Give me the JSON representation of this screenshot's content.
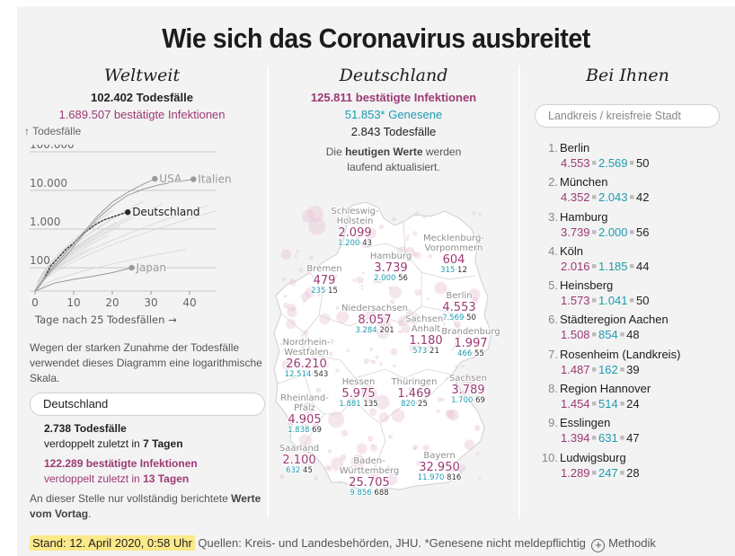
{
  "title": "Wie sich das Coronavirus ausbreitet",
  "weltweit": {
    "heading": "Weltweit",
    "deaths": "102.402 Todesfälle",
    "infections": "1.689.507 bestätigte Infektionen",
    "y_axis_caption": "↑ Todesfälle",
    "explanation": "Wegen der starken Zunahme der Todesfälle verwendet dieses Diagramm eine logarithmische Skala.",
    "country_select": "Deutschland",
    "doubling": {
      "deaths_value": "2.738 Todesfälle",
      "deaths_prefix": "verdoppelt zuletzt in ",
      "deaths_days": "7 Tagen",
      "infections_value": "122.289 bestätigte Infektionen",
      "infections_prefix": "verdoppelt zuletzt in ",
      "infections_days": "13 Tagen"
    },
    "note_prefix": "An dieser Stelle nur vollständig berichtete ",
    "note_bold": "Werte vom Vortag",
    "note_suffix": "."
  },
  "chart_data": {
    "type": "line",
    "title": "",
    "xlabel": "Tage nach 25 Todesfällen →",
    "ylabel": "↑ Todesfälle",
    "yscale": "log",
    "xlim": [
      0,
      47
    ],
    "ylim": [
      25,
      100000
    ],
    "x_ticks": [
      0,
      10,
      20,
      30,
      40
    ],
    "x_tick_labels": [
      "0",
      "10",
      "20",
      "30",
      "40"
    ],
    "y_ticks": [
      100,
      1000,
      10000,
      100000
    ],
    "y_tick_labels": [
      "100",
      "1.000",
      "10.000",
      "100.000"
    ],
    "grid": true,
    "series": [
      {
        "name": "Deutschland",
        "highlight": true,
        "x": [
          0,
          2,
          4,
          6,
          8,
          10,
          12,
          14,
          16,
          18,
          20,
          22,
          24
        ],
        "y": [
          25,
          45,
          110,
          180,
          300,
          430,
          700,
          1000,
          1400,
          1750,
          2050,
          2400,
          2738
        ]
      },
      {
        "name": "USA",
        "highlight": false,
        "labeled": true,
        "x": [
          0,
          4,
          8,
          12,
          16,
          20,
          24,
          28,
          31
        ],
        "y": [
          25,
          90,
          250,
          700,
          2100,
          5000,
          9000,
          14500,
          20000
        ]
      },
      {
        "name": "Italien",
        "highlight": false,
        "labeled": true,
        "x": [
          0,
          4,
          8,
          12,
          16,
          20,
          24,
          28,
          32,
          36,
          41
        ],
        "y": [
          25,
          80,
          200,
          630,
          1800,
          4000,
          7500,
          10800,
          13900,
          16500,
          19500
        ]
      },
      {
        "name": "Japan",
        "highlight": false,
        "labeled": true,
        "x": [
          0,
          5,
          10,
          15,
          20,
          25
        ],
        "y": [
          25,
          40,
          50,
          60,
          75,
          100
        ]
      }
    ]
  },
  "deutschland": {
    "heading": "Deutschland",
    "infections": "125.811 bestätigte Infektionen",
    "recovered": "51.853* Genesene",
    "deaths": "2.843 Todesfälle",
    "update_prefix": "Die ",
    "update_bold": "heutigen Werte",
    "update_suffix": " werden laufend aktualisiert.",
    "states": [
      {
        "name": "Schleswig-",
        "name2": "Holstein",
        "infections": "2.099",
        "recovered": "1.200",
        "deaths": "43"
      },
      {
        "name": "Mecklenburg-",
        "name2": "Vorpommern",
        "infections": "604",
        "recovered": "315",
        "deaths": "12"
      },
      {
        "name": "Hamburg",
        "name2": "",
        "infections": "3.739",
        "recovered": "2.000",
        "deaths": "56"
      },
      {
        "name": "Bremen",
        "name2": "",
        "infections": "479",
        "recovered": "235",
        "deaths": "15"
      },
      {
        "name": "Berlin",
        "name2": "",
        "infections": "4.553",
        "recovered": "2.569",
        "deaths": "50"
      },
      {
        "name": "Niedersachsen",
        "name2": "",
        "infections": "8.057",
        "recovered": "3.284",
        "deaths": "201"
      },
      {
        "name": "Sachsen-",
        "name2": "Anhalt",
        "infections": "1.180",
        "recovered": "573",
        "deaths": "21"
      },
      {
        "name": "Brandenburg",
        "name2": "",
        "infections": "1.997",
        "recovered": "466",
        "deaths": "55"
      },
      {
        "name": "Nordrhein-",
        "name2": "Westfalen",
        "infections": "26.210",
        "recovered": "12.514",
        "deaths": "543"
      },
      {
        "name": "Hessen",
        "name2": "",
        "infections": "5.975",
        "recovered": "1.881",
        "deaths": "135"
      },
      {
        "name": "Thüringen",
        "name2": "",
        "infections": "1.469",
        "recovered": "820",
        "deaths": "25"
      },
      {
        "name": "Sachsen",
        "name2": "",
        "infections": "3.789",
        "recovered": "1.700",
        "deaths": "69"
      },
      {
        "name": "Rheinland-",
        "name2": "Pfalz",
        "infections": "4.905",
        "recovered": "1.838",
        "deaths": "69"
      },
      {
        "name": "Saarland",
        "name2": "",
        "infections": "2.100",
        "recovered": "632",
        "deaths": "45"
      },
      {
        "name": "Bayern",
        "name2": "",
        "infections": "32.950",
        "recovered": "11.970",
        "deaths": "816"
      },
      {
        "name": "Baden-",
        "name2": "Württemberg",
        "infections": "25.705",
        "recovered": "9.856",
        "deaths": "688"
      }
    ]
  },
  "bei_ihnen": {
    "heading": "Bei Ihnen",
    "search_placeholder": "Landkreis / kreisfreie Stadt",
    "ranking": [
      {
        "rank": "1.",
        "name": "Berlin",
        "infections": "4.553",
        "recovered": "2.569",
        "deaths": "50"
      },
      {
        "rank": "2.",
        "name": "München",
        "infections": "4.352",
        "recovered": "2.043",
        "deaths": "42"
      },
      {
        "rank": "3.",
        "name": "Hamburg",
        "infections": "3.739",
        "recovered": "2.000",
        "deaths": "56"
      },
      {
        "rank": "4.",
        "name": "Köln",
        "infections": "2.016",
        "recovered": "1.185",
        "deaths": "44"
      },
      {
        "rank": "5.",
        "name": "Heinsberg",
        "infections": "1.573",
        "recovered": "1.041",
        "deaths": "50"
      },
      {
        "rank": "6.",
        "name": "Städteregion Aachen",
        "infections": "1.508",
        "recovered": "854",
        "deaths": "48"
      },
      {
        "rank": "7.",
        "name": "Rosenheim (Landkreis)",
        "infections": "1.487",
        "recovered": "162",
        "deaths": "39"
      },
      {
        "rank": "8.",
        "name": "Region Hannover",
        "infections": "1.454",
        "recovered": "514",
        "deaths": "24"
      },
      {
        "rank": "9.",
        "name": "Esslingen",
        "infections": "1.394",
        "recovered": "631",
        "deaths": "47"
      },
      {
        "rank": "10.",
        "name": "Ludwigsburg",
        "infections": "1.289",
        "recovered": "247",
        "deaths": "28"
      }
    ]
  },
  "footer": {
    "stand": "Stand: 12. April 2020, 0:58 Uhr",
    "sources": "Quellen: Kreis- und Landesbehörden, JHU. *Genesene nicht meldepflichtig",
    "method_label": "Methodik",
    "method_icon": "plus-circle-icon"
  },
  "colors": {
    "infections": "#9c3a74",
    "recovered": "#1d9cb0",
    "deaths": "#222222",
    "stand_highlight": "#fbe98a",
    "panel_bg": "#f3f3f3"
  }
}
